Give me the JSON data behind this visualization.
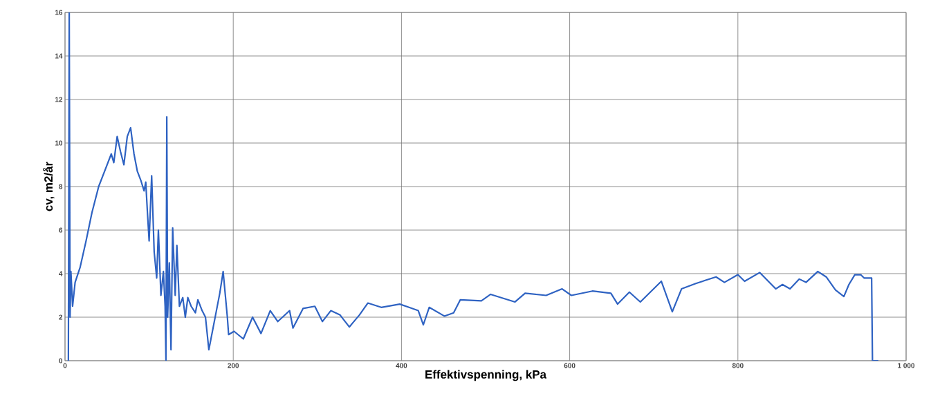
{
  "chart_data": {
    "type": "line",
    "xlabel": "Effektivspenning, kPa",
    "ylabel": "cv, m2/år",
    "xlim": [
      0,
      1000
    ],
    "ylim": [
      0,
      16
    ],
    "xticks": [
      0,
      200,
      400,
      600,
      800,
      {
        "value": 1000,
        "label": "1 000"
      }
    ],
    "yticks": [
      0,
      2,
      4,
      6,
      8,
      10,
      12,
      14,
      16
    ],
    "grid": true,
    "marker": "none",
    "line_style": "solid",
    "series": [
      {
        "color": "#2e62c2",
        "x": [
          4,
          5,
          6,
          7,
          9,
          12,
          18,
          25,
          32,
          40,
          48,
          55,
          58,
          62,
          66,
          70,
          74,
          78,
          82,
          86,
          90,
          94,
          96,
          98,
          100,
          103,
          106,
          109,
          111,
          114,
          117,
          119,
          120,
          121,
          122,
          124,
          126,
          128,
          131,
          133,
          136,
          140,
          143,
          146,
          150,
          155,
          158,
          163,
          167,
          171,
          184,
          188,
          193,
          194.5,
          201,
          212,
          223,
          233,
          244,
          253,
          267,
          271,
          283,
          297,
          306,
          316,
          327,
          338,
          350,
          360,
          376,
          398,
          409,
          420,
          426,
          433,
          451,
          462,
          470,
          495,
          506,
          535,
          547,
          572,
          591,
          602,
          627,
          649,
          657,
          671,
          684,
          709,
          722,
          733,
          750,
          774,
          784,
          800,
          808,
          826,
          845,
          853,
          862,
          873,
          881,
          895,
          905,
          916,
          926,
          932,
          939,
          946,
          950,
          959,
          960,
          967
        ],
        "values": [
          0,
          16,
          2,
          4.1,
          2.5,
          3.6,
          4.3,
          5.5,
          6.8,
          8,
          8.8,
          9.5,
          9.1,
          10.3,
          9.6,
          9.0,
          10.3,
          10.7,
          9.5,
          8.7,
          8.3,
          7.8,
          8.2,
          6.8,
          5.5,
          8.5,
          5.0,
          3.8,
          6.0,
          3.0,
          4.1,
          2.5,
          0,
          11.2,
          2,
          4.5,
          0.5,
          6.1,
          3,
          5.3,
          2.5,
          2.9,
          2,
          2.9,
          2.5,
          2.2,
          2.8,
          2.3,
          2.0,
          0.5,
          3.1,
          4.1,
          2.0,
          1.2,
          1.35,
          1.0,
          2,
          1.25,
          2.3,
          1.8,
          2.3,
          1.5,
          2.4,
          2.5,
          1.8,
          2.3,
          2.1,
          1.55,
          2.1,
          2.65,
          2.45,
          2.6,
          2.45,
          2.3,
          1.65,
          2.45,
          2.05,
          2.2,
          2.8,
          2.75,
          3.05,
          2.7,
          3.1,
          3.0,
          3.3,
          3.0,
          3.2,
          3.1,
          2.6,
          3.15,
          2.7,
          3.65,
          2.25,
          3.3,
          3.55,
          3.85,
          3.6,
          3.95,
          3.65,
          4.05,
          3.3,
          3.5,
          3.3,
          3.75,
          3.6,
          4.1,
          3.85,
          3.25,
          2.95,
          3.5,
          3.95,
          3.95,
          3.8,
          3.8,
          0,
          0
        ]
      }
    ]
  }
}
